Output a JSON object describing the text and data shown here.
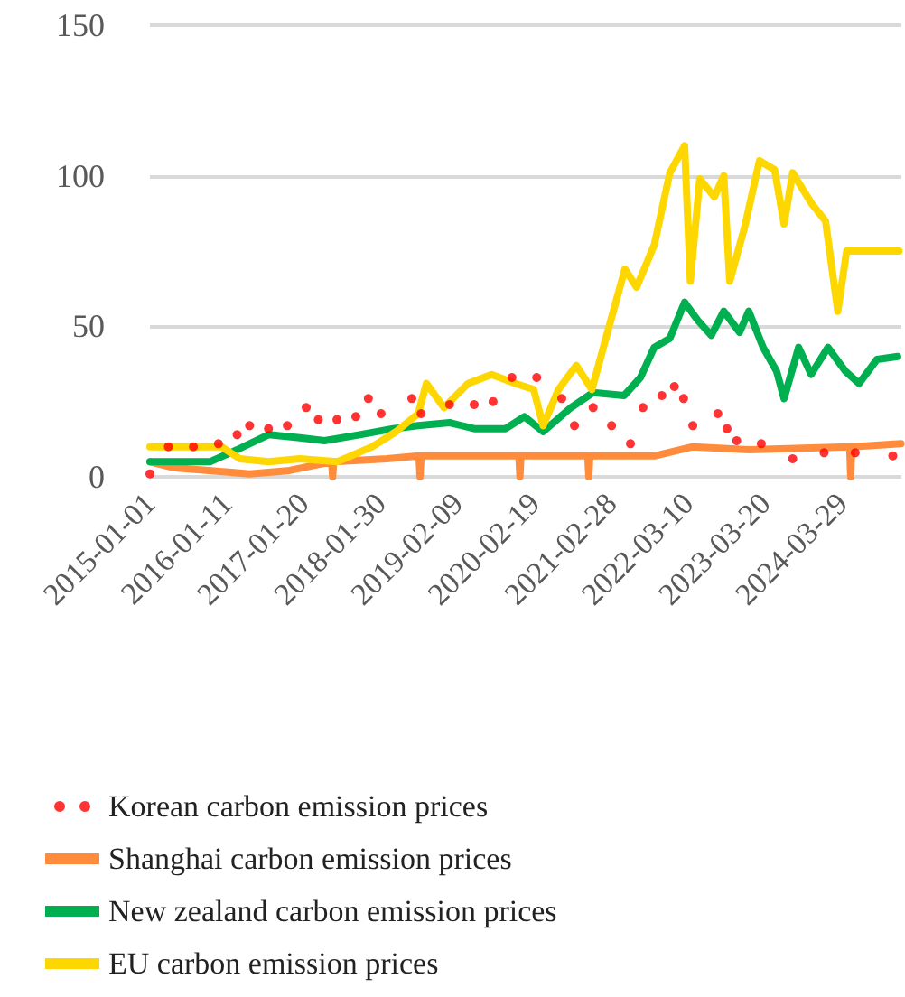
{
  "chart_data": {
    "type": "line",
    "xlim": [
      "2015-01-01",
      "2025-01-12"
    ],
    "xticks": [
      "2015-01-01",
      "2016-01-11",
      "2017-01-20",
      "2018-01-30",
      "2019-02-09",
      "2020-02-19",
      "2021-02-28",
      "2022-03-10",
      "2023-03-20",
      "2024-03-29"
    ],
    "ylim": [
      0,
      150
    ],
    "yticks": [
      0,
      50,
      100,
      150
    ],
    "grid": "y",
    "legend": "bottom",
    "series": [
      {
        "name": "Korean carbon emission prices",
        "type": "scatter",
        "color": "#ff0000",
        "x": [
          "2015-01-01",
          "2015-04-01",
          "2015-08-01",
          "2015-12-01",
          "2016-03-01",
          "2016-05-01",
          "2016-08-01",
          "2016-11-01",
          "2017-02-01",
          "2017-04-01",
          "2017-07-01",
          "2017-10-01",
          "2017-12-01",
          "2018-02-01",
          "2018-07-01",
          "2018-08-15",
          "2019-01-01",
          "2019-05-01",
          "2019-08-01",
          "2019-11-01",
          "2020-03-01",
          "2020-07-01",
          "2020-09-01",
          "2020-12-01",
          "2021-03-01",
          "2021-06-01",
          "2021-08-01",
          "2021-11-01",
          "2022-01-01",
          "2022-02-15",
          "2022-04-01",
          "2022-08-01",
          "2022-09-15",
          "2022-11-01",
          "2023-03-01",
          "2023-08-01",
          "2024-01-01",
          "2024-06-01",
          "2024-12-01"
        ],
        "values": [
          1,
          10,
          10,
          11,
          14,
          17,
          16,
          17,
          23,
          19,
          19,
          20,
          26,
          21,
          26,
          21,
          24,
          24,
          25,
          33,
          33,
          26,
          17,
          23,
          17,
          11,
          23,
          27,
          30,
          26,
          17,
          21,
          16,
          12,
          11,
          6,
          8,
          8,
          7
        ]
      },
      {
        "name": "Shanghai carbon emission prices",
        "color": "#ff8c3c",
        "x": [
          "2015-01-01",
          "2015-05-01",
          "2016-05-01",
          "2016-11-01",
          "2017-06-05",
          "2017-06-10",
          "2017-06-15",
          "2018-03-01",
          "2018-08-05",
          "2018-08-10",
          "2018-08-15",
          "2019-05-01",
          "2019-12-05",
          "2019-12-10",
          "2019-12-15",
          "2020-08-01",
          "2020-11-05",
          "2020-11-10",
          "2020-11-15",
          "2021-10-01",
          "2022-04-01",
          "2023-01-01",
          "2024-05-05",
          "2024-05-10",
          "2024-05-15",
          "2025-01-10"
        ],
        "values": [
          5,
          3,
          1,
          2,
          5,
          0,
          5,
          6,
          7,
          0,
          7,
          7,
          7,
          0,
          7,
          7,
          7,
          0,
          7,
          7,
          10,
          9,
          10,
          0,
          10,
          11
        ]
      },
      {
        "name": "New zealand carbon emission prices",
        "color": "#00b050",
        "x": [
          "2015-01-01",
          "2015-10-20",
          "2016-03-01",
          "2016-08-01",
          "2017-01-01",
          "2017-05-01",
          "2017-10-20",
          "2018-04-01",
          "2018-08-01",
          "2019-01-01",
          "2019-05-01",
          "2019-10-01",
          "2020-01-01",
          "2020-04-01",
          "2020-08-15",
          "2020-12-01",
          "2021-05-01",
          "2021-07-20",
          "2021-09-25",
          "2021-12-10",
          "2022-02-20",
          "2022-04-25",
          "2022-06-30",
          "2022-08-30",
          "2022-11-15",
          "2022-12-30",
          "2023-03-10",
          "2023-05-15",
          "2023-06-20",
          "2023-08-30",
          "2023-10-30",
          "2024-01-20",
          "2024-04-15",
          "2024-06-20",
          "2024-09-15",
          "2024-12-25"
        ],
        "values": [
          5,
          5,
          9,
          14,
          13,
          12,
          14,
          16,
          17,
          18,
          16,
          16,
          20,
          15,
          23,
          28,
          27,
          33,
          43,
          46,
          58,
          52,
          47,
          55,
          48,
          55,
          43,
          35,
          26,
          43,
          34,
          43,
          35,
          31,
          39,
          40
        ]
      },
      {
        "name": "EU carbon emission prices",
        "color": "#ffd700",
        "x": [
          "2015-01-01",
          "2015-07-20",
          "2015-12-15",
          "2016-03-15",
          "2016-08-01",
          "2017-01-01",
          "2017-07-01",
          "2017-12-20",
          "2018-04-15",
          "2018-08-01",
          "2018-09-10",
          "2018-12-05",
          "2019-04-01",
          "2019-07-25",
          "2019-11-20",
          "2020-02-15",
          "2020-04-01",
          "2020-06-15",
          "2020-09-10",
          "2020-11-25",
          "2021-02-05",
          "2021-05-05",
          "2021-07-01",
          "2021-09-25",
          "2021-12-10",
          "2022-02-20",
          "2022-03-20",
          "2022-05-05",
          "2022-07-15",
          "2022-08-30",
          "2022-09-28",
          "2022-12-10",
          "2023-02-20",
          "2023-05-05",
          "2023-06-20",
          "2023-08-01",
          "2023-10-30",
          "2024-01-08",
          "2024-03-08",
          "2024-04-20",
          "2025-01-01"
        ],
        "values": [
          10,
          10,
          10,
          6,
          5,
          6,
          5,
          10,
          15,
          21,
          31,
          23,
          31,
          34,
          31,
          29,
          17,
          29,
          37,
          29,
          47,
          69,
          63,
          77,
          101,
          110,
          65,
          99,
          93,
          100,
          65,
          83,
          105,
          102,
          84,
          101,
          91,
          85,
          55,
          75,
          75
        ]
      }
    ]
  }
}
